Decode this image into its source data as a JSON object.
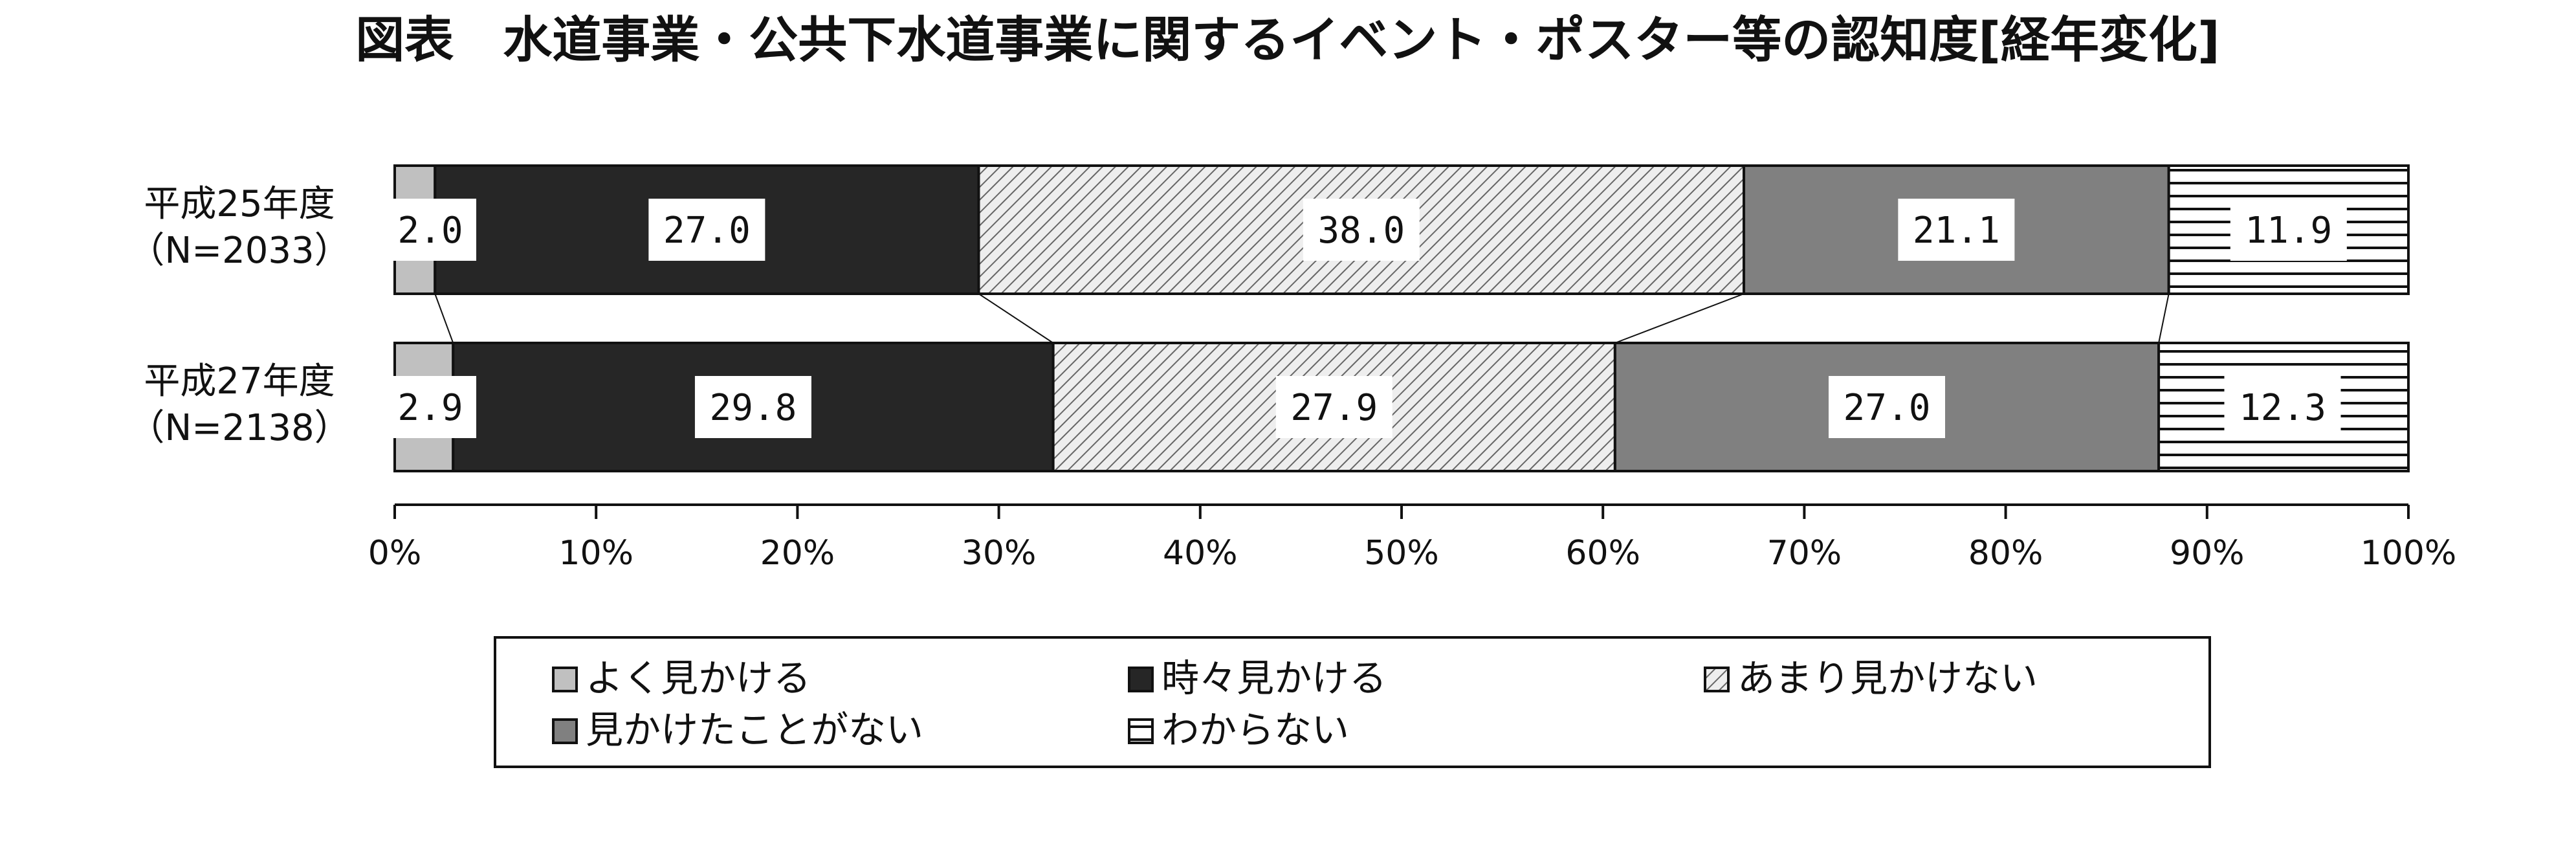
{
  "chart_data": {
    "type": "bar",
    "orientation": "horizontal",
    "stacked": true,
    "normalized": true,
    "title": "図表　水道事業・公共下水道事業に関するイベント・ポスター等の認知度[経年変化]",
    "categories": [
      "平成25年度\n（N=2033）",
      "平成27年度\n（N=2138）"
    ],
    "series": [
      {
        "name": "よく見かける",
        "values": [
          2.0,
          2.9
        ],
        "labels": [
          "2.0",
          "2.9"
        ],
        "color": "#c0c0c0",
        "pattern": "solid"
      },
      {
        "name": "時々見かける",
        "values": [
          27.0,
          29.8
        ],
        "labels": [
          "27.0",
          "29.8"
        ],
        "color": "#262626",
        "pattern": "solid"
      },
      {
        "name": "あまり見かけない",
        "values": [
          38.0,
          27.9
        ],
        "labels": [
          "38.0",
          "27.9"
        ],
        "color": "#e6e6e6",
        "pattern": "diagonal"
      },
      {
        "name": "見かけたことがない",
        "values": [
          21.1,
          27.0
        ],
        "labels": [
          "21.1",
          "27.0"
        ],
        "color": "#808080",
        "pattern": "solid"
      },
      {
        "name": "わからない",
        "values": [
          11.9,
          12.3
        ],
        "labels": [
          "11.9",
          "12.3"
        ],
        "color": "#ffffff",
        "pattern": "horizontal"
      }
    ],
    "xlim": [
      0,
      100
    ],
    "xticks": [
      "0%",
      "10%",
      "20%",
      "30%",
      "40%",
      "50%",
      "60%",
      "70%",
      "80%",
      "90%",
      "100%"
    ],
    "legend_position": "bottom",
    "series_lines": true
  }
}
